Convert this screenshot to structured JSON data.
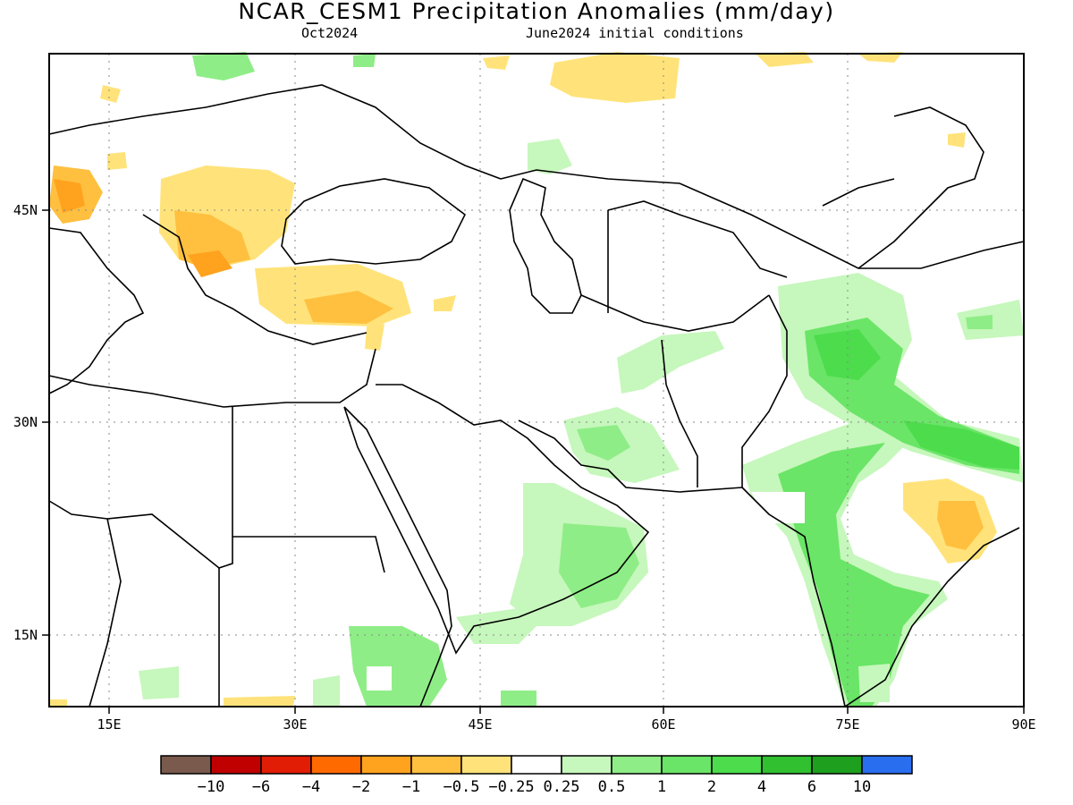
{
  "title": "NCAR_CESM1 Precipitation Anomalies (mm/day)",
  "valid_month": "Oct2024",
  "init": "June2024 initial conditions",
  "x_ticks": [
    "15E",
    "30E",
    "45E",
    "60E",
    "75E",
    "90E"
  ],
  "y_ticks": [
    "45N",
    "30N",
    "15N"
  ],
  "colorbar": {
    "colors": [
      "#7a5a4c",
      "#c00000",
      "#e21d05",
      "#ff6a00",
      "#ffa21e",
      "#ffc040",
      "#ffe37a",
      "#ffffff",
      "#c6f7bc",
      "#8fed87",
      "#6ae567",
      "#4cdc4c",
      "#30c030",
      "#1ea01e",
      "#2a6ef0"
    ],
    "labels": [
      "−10",
      "−6",
      "−4",
      "−2",
      "−1",
      "−0.5",
      "−0.25",
      "0.25",
      "0.5",
      "1",
      "2",
      "4",
      "6",
      "10"
    ]
  }
}
